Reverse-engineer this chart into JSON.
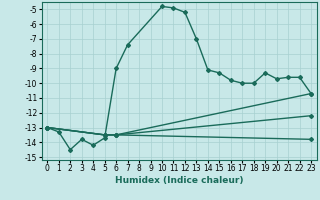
{
  "xlabel": "Humidex (Indice chaleur)",
  "ylabel": "",
  "bg_color": "#c8e8e8",
  "line_color": "#1a6b5a",
  "grid_color": "#a8d0d0",
  "xlim": [
    -0.5,
    23.5
  ],
  "ylim": [
    -15.2,
    -4.5
  ],
  "yticks": [
    -15,
    -14,
    -13,
    -12,
    -11,
    -10,
    -9,
    -8,
    -7,
    -6,
    -5
  ],
  "xticks": [
    0,
    1,
    2,
    3,
    4,
    5,
    6,
    7,
    8,
    9,
    10,
    11,
    12,
    13,
    14,
    15,
    16,
    17,
    18,
    19,
    20,
    21,
    22,
    23
  ],
  "series": [
    {
      "x": [
        0,
        1,
        2,
        3,
        4,
        5,
        6,
        7,
        10,
        11,
        12,
        13,
        14,
        15,
        16,
        17,
        18,
        19,
        20,
        21,
        22,
        23
      ],
      "y": [
        -13.0,
        -13.3,
        -14.5,
        -13.8,
        -14.2,
        -13.7,
        -9.0,
        -7.4,
        -4.8,
        -4.9,
        -5.2,
        -7.0,
        -9.1,
        -9.3,
        -9.8,
        -10.0,
        -10.0,
        -9.3,
        -9.7,
        -9.6,
        -9.6,
        -10.7
      ]
    },
    {
      "x": [
        0,
        5,
        6,
        23
      ],
      "y": [
        -13.0,
        -13.5,
        -13.5,
        -10.7
      ]
    },
    {
      "x": [
        0,
        5,
        6,
        23
      ],
      "y": [
        -13.0,
        -13.5,
        -13.5,
        -12.2
      ]
    },
    {
      "x": [
        0,
        5,
        6,
        23
      ],
      "y": [
        -13.0,
        -13.5,
        -13.5,
        -13.8
      ]
    }
  ],
  "marker": "D",
  "marker_size": 2.0,
  "linewidth": 1.0,
  "tick_fontsize": 5.5,
  "xlabel_fontsize": 6.5
}
